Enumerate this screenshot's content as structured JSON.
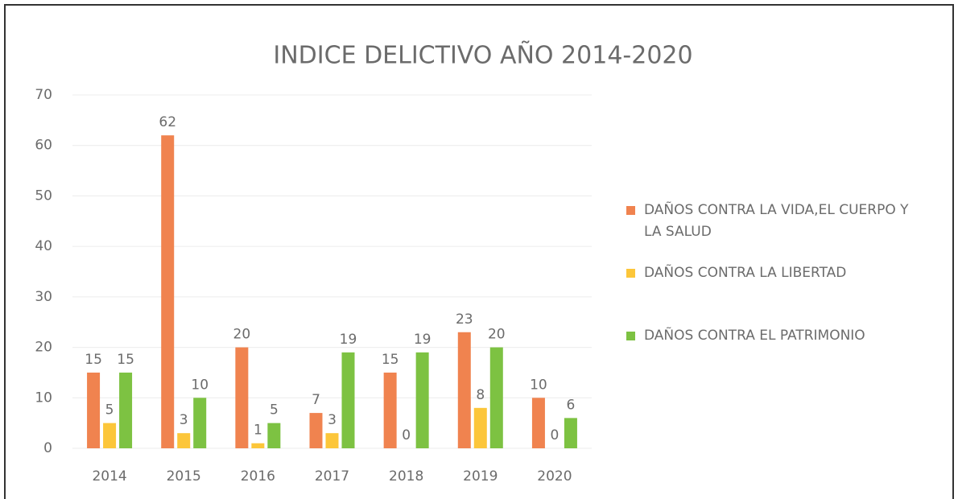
{
  "chart_data": {
    "type": "bar",
    "title": "INDICE DELICTIVO AÑO 2014-2020",
    "categories": [
      "2014",
      "2015",
      "2016",
      "2017",
      "2018",
      "2019",
      "2020"
    ],
    "series": [
      {
        "name": "DAÑOS CONTRA LA VIDA,EL CUERPO Y LA SALUD",
        "color": "#f0834f",
        "values": [
          15,
          62,
          20,
          7,
          15,
          23,
          10
        ]
      },
      {
        "name": "DAÑOS CONTRA LA LIBERTAD",
        "color": "#fcc63a",
        "values": [
          5,
          3,
          1,
          3,
          0,
          8,
          0
        ]
      },
      {
        "name": "DAÑOS CONTRA EL PATRIMONIO",
        "color": "#7dc242",
        "values": [
          15,
          10,
          5,
          19,
          19,
          20,
          6
        ]
      }
    ],
    "ylim": [
      0,
      70
    ],
    "yticks": [
      0,
      10,
      20,
      30,
      40,
      50,
      60,
      70
    ],
    "grid": true,
    "legend": "right"
  }
}
